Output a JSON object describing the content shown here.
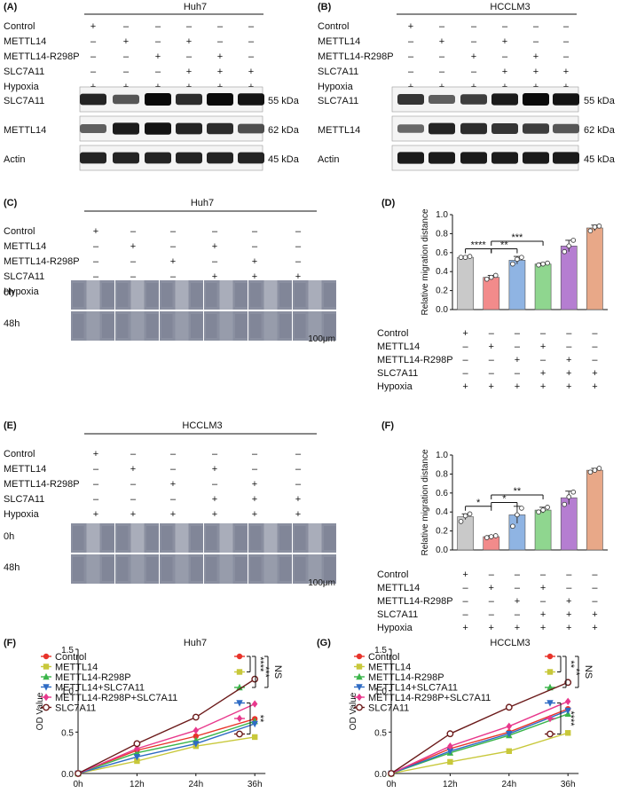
{
  "blots": [
    {
      "letter": "(A)",
      "title": "Huh7",
      "rows": [
        {
          "label": "Control",
          "signs": [
            "+",
            "–",
            "–",
            "–",
            "–",
            "–"
          ]
        },
        {
          "label": "METTL14",
          "signs": [
            "–",
            "+",
            "–",
            "+",
            "–",
            "–"
          ]
        },
        {
          "label": "METTL14-R298P",
          "signs": [
            "–",
            "–",
            "+",
            "–",
            "+",
            "–"
          ]
        },
        {
          "label": "SLC7A11",
          "signs": [
            "–",
            "–",
            "–",
            "+",
            "+",
            "+"
          ]
        },
        {
          "label": "Hypoxia",
          "signs": [
            "+",
            "+",
            "+",
            "+",
            "+",
            "+"
          ]
        }
      ],
      "bands": [
        {
          "protein": "SLC7A11",
          "size": "55 kDa",
          "intensity": [
            0.85,
            0.55,
            1.0,
            0.8,
            1.0,
            0.95
          ]
        },
        {
          "protein": "METTL14",
          "size": "62 kDa",
          "intensity": [
            0.5,
            0.9,
            0.95,
            0.85,
            0.8,
            0.6
          ]
        },
        {
          "protein": "Actin",
          "size": "45 kDa",
          "intensity": [
            0.85,
            0.85,
            0.85,
            0.85,
            0.85,
            0.85
          ]
        }
      ]
    },
    {
      "letter": "(B)",
      "title": "HCCLM3",
      "rows": [
        {
          "label": "Control",
          "signs": [
            "+",
            "–",
            "–",
            "–",
            "–",
            "–"
          ]
        },
        {
          "label": "METTL14",
          "signs": [
            "–",
            "+",
            "–",
            "+",
            "–",
            "–"
          ]
        },
        {
          "label": "METTL14-R298P",
          "signs": [
            "–",
            "–",
            "+",
            "–",
            "+",
            "–"
          ]
        },
        {
          "label": "SLC7A11",
          "signs": [
            "–",
            "–",
            "–",
            "+",
            "+",
            "+"
          ]
        },
        {
          "label": "Hypoxia",
          "signs": [
            "+",
            "+",
            "+",
            "+",
            "+",
            "+"
          ]
        }
      ],
      "bands": [
        {
          "protein": "SLC7A11",
          "size": "55 kDa",
          "intensity": [
            0.75,
            0.5,
            0.7,
            0.9,
            1.0,
            0.95
          ]
        },
        {
          "protein": "METTL14",
          "size": "62 kDa",
          "intensity": [
            0.45,
            0.85,
            0.8,
            0.75,
            0.7,
            0.55
          ]
        },
        {
          "protein": "Actin",
          "size": "45 kDa",
          "intensity": [
            0.9,
            0.9,
            0.9,
            0.9,
            0.9,
            0.9
          ]
        }
      ]
    }
  ],
  "wound": [
    {
      "letter": "(C)",
      "title": "Huh7",
      "times": [
        "0h",
        "48h"
      ],
      "scale": "100μm",
      "rows": [
        {
          "label": "Control",
          "signs": [
            "+",
            "–",
            "–",
            "–",
            "–",
            "–"
          ]
        },
        {
          "label": "METTL14",
          "signs": [
            "–",
            "+",
            "–",
            "+",
            "–",
            "–"
          ]
        },
        {
          "label": "METTL14-R298P",
          "signs": [
            "–",
            "–",
            "+",
            "–",
            "+",
            "–"
          ]
        },
        {
          "label": "SLC7A11",
          "signs": [
            "–",
            "–",
            "–",
            "+",
            "+",
            "+"
          ]
        },
        {
          "label": "Hypoxia",
          "signs": [
            "+",
            "+",
            "+",
            "+",
            "+",
            "+"
          ]
        }
      ]
    },
    {
      "letter": "(E)",
      "title": "HCCLM3",
      "times": [
        "0h",
        "48h"
      ],
      "scale": "100μm",
      "rows": [
        {
          "label": "Control",
          "signs": [
            "+",
            "–",
            "–",
            "–",
            "–",
            "–"
          ]
        },
        {
          "label": "METTL14",
          "signs": [
            "–",
            "+",
            "–",
            "+",
            "–",
            "–"
          ]
        },
        {
          "label": "METTL14-R298P",
          "signs": [
            "–",
            "–",
            "+",
            "–",
            "+",
            "–"
          ]
        },
        {
          "label": "SLC7A11",
          "signs": [
            "–",
            "–",
            "–",
            "+",
            "+",
            "+"
          ]
        },
        {
          "label": "Hypoxia",
          "signs": [
            "+",
            "+",
            "+",
            "+",
            "+",
            "+"
          ]
        }
      ]
    }
  ],
  "chart_data": [
    {
      "type": "bar",
      "letter": "(D)",
      "ylabel": "Relative migration distance",
      "ylim": [
        0,
        1.0
      ],
      "yticks": [
        "0.0",
        "0.2",
        "0.4",
        "0.6",
        "0.8",
        "1.0"
      ],
      "values": [
        0.55,
        0.34,
        0.52,
        0.48,
        0.67,
        0.86
      ],
      "errors": [
        0.01,
        0.02,
        0.04,
        0.01,
        0.06,
        0.03
      ],
      "points": [
        [
          0.55,
          0.55,
          0.56
        ],
        [
          0.32,
          0.34,
          0.36
        ],
        [
          0.48,
          0.53,
          0.55
        ],
        [
          0.47,
          0.48,
          0.49
        ],
        [
          0.61,
          0.67,
          0.73
        ],
        [
          0.83,
          0.87,
          0.88
        ]
      ],
      "colors": [
        "#c9c9c9",
        "#f28b8b",
        "#8fb4e3",
        "#8fd68f",
        "#b57ed1",
        "#e8a888"
      ],
      "rows": [
        {
          "label": "Control",
          "signs": [
            "+",
            "–",
            "–",
            "–",
            "–",
            "–"
          ]
        },
        {
          "label": "METTL14",
          "signs": [
            "–",
            "+",
            "–",
            "+",
            "–",
            "–"
          ]
        },
        {
          "label": "METTL14-R298P",
          "signs": [
            "–",
            "–",
            "+",
            "–",
            "+",
            "–"
          ]
        },
        {
          "label": "SLC7A11",
          "signs": [
            "–",
            "–",
            "–",
            "+",
            "+",
            "+"
          ]
        },
        {
          "label": "Hypoxia",
          "signs": [
            "+",
            "+",
            "+",
            "+",
            "+",
            "+"
          ]
        }
      ],
      "sig": [
        {
          "from": 0,
          "to": 1,
          "label": "****",
          "y": 0.64
        },
        {
          "from": 1,
          "to": 2,
          "label": "**",
          "y": 0.64
        },
        {
          "from": 1,
          "to": 3,
          "label": "***",
          "y": 0.72
        }
      ]
    },
    {
      "type": "bar",
      "letter": "(F)",
      "ylabel": "Relative migration distance",
      "ylim": [
        0,
        1.0
      ],
      "yticks": [
        "0.0",
        "0.2",
        "0.4",
        "0.6",
        "0.8",
        "1.0"
      ],
      "values": [
        0.35,
        0.14,
        0.37,
        0.42,
        0.55,
        0.84
      ],
      "errors": [
        0.03,
        0.01,
        0.09,
        0.03,
        0.07,
        0.02
      ],
      "points": [
        [
          0.3,
          0.36,
          0.38
        ],
        [
          0.13,
          0.14,
          0.15
        ],
        [
          0.25,
          0.37,
          0.44
        ],
        [
          0.4,
          0.42,
          0.45
        ],
        [
          0.48,
          0.56,
          0.61
        ],
        [
          0.82,
          0.84,
          0.86
        ]
      ],
      "colors": [
        "#c9c9c9",
        "#f28b8b",
        "#8fb4e3",
        "#8fd68f",
        "#b57ed1",
        "#e8a888"
      ],
      "rows": [
        {
          "label": "Control",
          "signs": [
            "+",
            "–",
            "–",
            "–",
            "–",
            "–"
          ]
        },
        {
          "label": "METTL14",
          "signs": [
            "–",
            "+",
            "–",
            "+",
            "–",
            "–"
          ]
        },
        {
          "label": "METTL14-R298P",
          "signs": [
            "–",
            "–",
            "+",
            "–",
            "+",
            "–"
          ]
        },
        {
          "label": "SLC7A11",
          "signs": [
            "–",
            "–",
            "–",
            "+",
            "+",
            "+"
          ]
        },
        {
          "label": "Hypoxia",
          "signs": [
            "+",
            "+",
            "+",
            "+",
            "+",
            "+"
          ]
        }
      ],
      "sig": [
        {
          "from": 0,
          "to": 1,
          "label": "*",
          "y": 0.46
        },
        {
          "from": 1,
          "to": 2,
          "label": "*",
          "y": 0.5
        },
        {
          "from": 1,
          "to": 3,
          "label": "**",
          "y": 0.58
        }
      ]
    },
    {
      "type": "line",
      "letter": "(F)",
      "title": "Huh7",
      "ylabel": "OD Value",
      "ylim": [
        0,
        1.5
      ],
      "yticks": [
        "0.0",
        "0.5",
        "1.0",
        "1.5"
      ],
      "x": [
        "0h",
        "12h",
        "24h",
        "36h"
      ],
      "series": [
        {
          "name": "Control",
          "color": "#e8332a",
          "marker": "circle",
          "values": [
            0,
            0.28,
            0.45,
            0.66
          ]
        },
        {
          "name": "METTL14",
          "color": "#c8c83a",
          "marker": "square",
          "values": [
            0,
            0.15,
            0.33,
            0.44
          ]
        },
        {
          "name": "METTL14-R298P",
          "color": "#3ab54a",
          "marker": "triangle",
          "values": [
            0,
            0.25,
            0.4,
            0.63
          ]
        },
        {
          "name": "METTL14+SLC7A11",
          "color": "#2f6bc4",
          "marker": "triangle-down",
          "values": [
            0,
            0.2,
            0.36,
            0.6
          ]
        },
        {
          "name": "METTL14-R298P+SLC7A11",
          "color": "#e8388c",
          "marker": "diamond",
          "values": [
            0,
            0.3,
            0.52,
            0.84
          ]
        },
        {
          "name": "SLC7A11",
          "color": "#6b1a1a",
          "marker": "circle-open",
          "values": [
            0,
            0.36,
            0.68,
            1.14
          ]
        }
      ],
      "sig": [
        {
          "from": 0,
          "to": 1,
          "label": "****"
        },
        {
          "from": 0,
          "to": 2,
          "label": "***"
        },
        {
          "from": 0,
          "to": 5,
          "label": "NS",
          "side": "outer"
        },
        {
          "from": 3,
          "to": 5,
          "label": "**"
        }
      ]
    },
    {
      "type": "line",
      "letter": "(G)",
      "title": "HCCLM3",
      "ylabel": "OD Value",
      "ylim": [
        0,
        1.5
      ],
      "yticks": [
        "0.0",
        "0.5",
        "1.0",
        "1.5"
      ],
      "x": [
        "0h",
        "12h",
        "24h",
        "36h"
      ],
      "series": [
        {
          "name": "Control",
          "color": "#e8332a",
          "marker": "circle",
          "values": [
            0,
            0.3,
            0.5,
            0.78
          ]
        },
        {
          "name": "METTL14",
          "color": "#c8c83a",
          "marker": "square",
          "values": [
            0,
            0.14,
            0.27,
            0.49
          ]
        },
        {
          "name": "METTL14-R298P",
          "color": "#3ab54a",
          "marker": "triangle",
          "values": [
            0,
            0.25,
            0.46,
            0.72
          ]
        },
        {
          "name": "METTL14+SLC7A11",
          "color": "#2f6bc4",
          "marker": "triangle-down",
          "values": [
            0,
            0.27,
            0.48,
            0.76
          ]
        },
        {
          "name": "METTL14-R298P+SLC7A11",
          "color": "#e8388c",
          "marker": "diamond",
          "values": [
            0,
            0.33,
            0.57,
            0.87
          ]
        },
        {
          "name": "SLC7A11",
          "color": "#6b1a1a",
          "marker": "circle-open",
          "values": [
            0,
            0.48,
            0.8,
            1.1
          ]
        }
      ],
      "sig": [
        {
          "from": 0,
          "to": 1,
          "label": "**"
        },
        {
          "from": 0,
          "to": 2,
          "label": "**"
        },
        {
          "from": 0,
          "to": 5,
          "label": "NS",
          "side": "outer"
        },
        {
          "from": 3,
          "to": 5,
          "label": "****"
        }
      ]
    }
  ]
}
